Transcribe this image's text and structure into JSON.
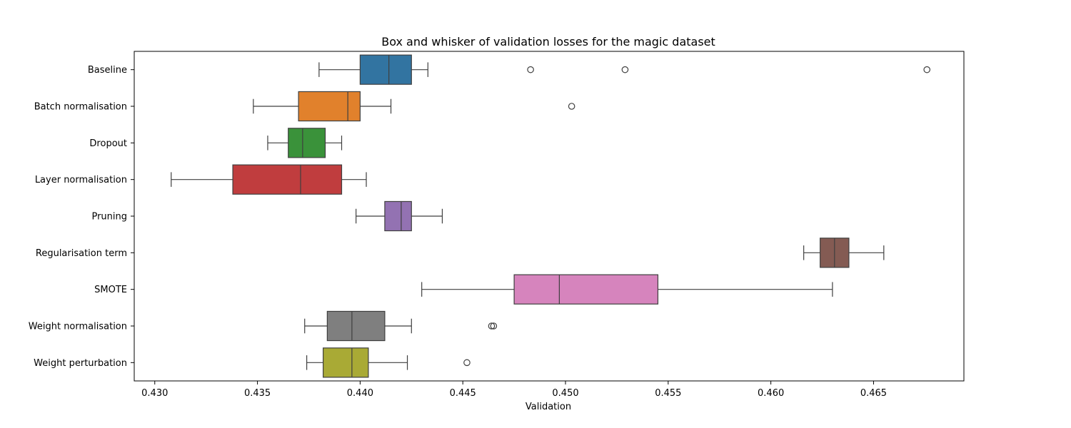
{
  "chart_data": {
    "type": "box",
    "orientation": "horizontal",
    "title": "Box and whisker of validation losses for the magic dataset",
    "xlabel": "Validation",
    "ylabel": "",
    "xlim": [
      0.429,
      0.4694
    ],
    "xticks": [
      0.43,
      0.435,
      0.44,
      0.445,
      0.45,
      0.455,
      0.46,
      0.465
    ],
    "xtick_labels": [
      "0.430",
      "0.435",
      "0.440",
      "0.445",
      "0.450",
      "0.455",
      "0.460",
      "0.465"
    ],
    "grid": false,
    "legend": "none",
    "series": [
      {
        "category": "Baseline",
        "color": "#3274a1",
        "whisker_low": 0.438,
        "q1": 0.44,
        "median": 0.4414,
        "q3": 0.4425,
        "whisker_high": 0.4433,
        "outliers": [
          0.4483,
          0.4529,
          0.4676
        ]
      },
      {
        "category": "Batch normalisation",
        "color": "#e1812c",
        "whisker_low": 0.4348,
        "q1": 0.437,
        "median": 0.4394,
        "q3": 0.44,
        "whisker_high": 0.4415,
        "outliers": [
          0.4503
        ]
      },
      {
        "category": "Dropout",
        "color": "#3a923a",
        "whisker_low": 0.4355,
        "q1": 0.4365,
        "median": 0.4372,
        "q3": 0.4383,
        "whisker_high": 0.4391,
        "outliers": []
      },
      {
        "category": "Layer normalisation",
        "color": "#c03d3e",
        "whisker_low": 0.4308,
        "q1": 0.4338,
        "median": 0.4371,
        "q3": 0.4391,
        "whisker_high": 0.4403,
        "outliers": []
      },
      {
        "category": "Pruning",
        "color": "#9372b2",
        "whisker_low": 0.4398,
        "q1": 0.4412,
        "median": 0.442,
        "q3": 0.4425,
        "whisker_high": 0.444,
        "outliers": []
      },
      {
        "category": "Regularisation term",
        "color": "#845b53",
        "whisker_low": 0.4616,
        "q1": 0.4624,
        "median": 0.4631,
        "q3": 0.4638,
        "whisker_high": 0.4655,
        "outliers": []
      },
      {
        "category": "SMOTE",
        "color": "#d684bd",
        "whisker_low": 0.443,
        "q1": 0.4475,
        "median": 0.4497,
        "q3": 0.4545,
        "whisker_high": 0.463,
        "outliers": []
      },
      {
        "category": "Weight normalisation",
        "color": "#7f7f7f",
        "whisker_low": 0.4373,
        "q1": 0.4384,
        "median": 0.4396,
        "q3": 0.4412,
        "whisker_high": 0.4425,
        "outliers": [
          0.4464,
          0.4465
        ]
      },
      {
        "category": "Weight perturbation",
        "color": "#a9aa35",
        "whisker_low": 0.4374,
        "q1": 0.4382,
        "median": 0.4396,
        "q3": 0.4404,
        "whisker_high": 0.4423,
        "outliers": [
          0.4452
        ]
      }
    ]
  }
}
